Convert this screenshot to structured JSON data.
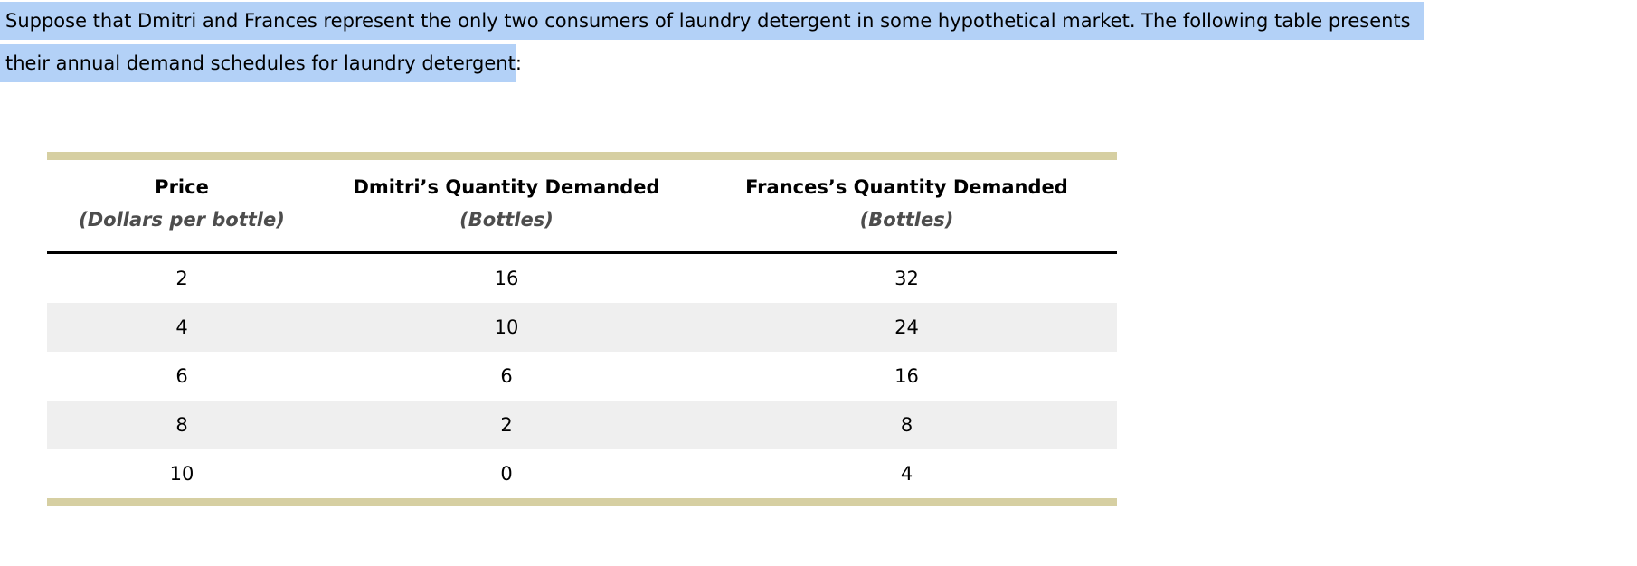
{
  "page": {
    "background": "#ffffff",
    "selection_color": "#b3d1f7"
  },
  "paragraph": {
    "line1_selected": "Suppose that Dmitri and Frances represent the only two consumers of laundry detergent in some hypothetical market. The following table presents",
    "line2_selected": "their annual demand schedules for laundry detergent",
    "line2_tail": ":"
  },
  "table": {
    "accent_bar_color": "#d6cfa2",
    "alt_row_color": "#efefef",
    "subtitle_color": "#4d4d4d",
    "columns": [
      {
        "title": "Price",
        "subtitle": "(Dollars per bottle)"
      },
      {
        "title": "Dmitri’s Quantity Demanded",
        "subtitle": "(Bottles)"
      },
      {
        "title": "Frances’s Quantity Demanded",
        "subtitle": "(Bottles)"
      }
    ],
    "rows": [
      [
        "2",
        "16",
        "32"
      ],
      [
        "4",
        "10",
        "24"
      ],
      [
        "6",
        "6",
        "16"
      ],
      [
        "8",
        "2",
        "8"
      ],
      [
        "10",
        "0",
        "4"
      ]
    ]
  },
  "chart_data": {
    "type": "table",
    "columns": [
      "Price (Dollars per bottle)",
      "Dmitri’s Quantity Demanded (Bottles)",
      "Frances’s Quantity Demanded (Bottles)"
    ],
    "rows": [
      [
        2,
        16,
        32
      ],
      [
        4,
        10,
        24
      ],
      [
        6,
        6,
        16
      ],
      [
        8,
        2,
        8
      ],
      [
        10,
        0,
        4
      ]
    ]
  }
}
